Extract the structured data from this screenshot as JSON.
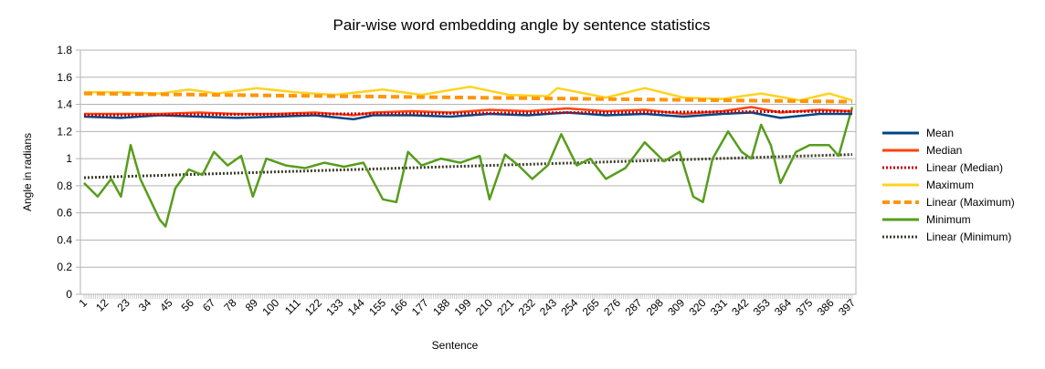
{
  "chart_data": {
    "type": "line",
    "title": "Pair-wise word embedding angle by sentence statistics",
    "xlabel": "Sentence",
    "ylabel": "Angle in radians",
    "ylim": [
      0,
      1.8
    ],
    "yticks": [
      "0",
      "0.2",
      "0.4",
      "0.6",
      "0.8",
      "1",
      "1.2",
      "1.4",
      "1.6",
      "1.8"
    ],
    "x_range": [
      1,
      397
    ],
    "x_tick_labels": [
      "1",
      "12",
      "23",
      "34",
      "45",
      "56",
      "67",
      "78",
      "89",
      "100",
      "111",
      "122",
      "133",
      "144",
      "155",
      "166",
      "177",
      "188",
      "199",
      "210",
      "221",
      "232",
      "243",
      "254",
      "265",
      "276",
      "287",
      "298",
      "309",
      "320",
      "331",
      "342",
      "353",
      "364",
      "375",
      "386",
      "397"
    ],
    "grid": "horizontal",
    "legend_position": "right",
    "series": [
      {
        "name": "Mean",
        "color": "#004586",
        "style": "solid",
        "points": [
          [
            1,
            1.31
          ],
          [
            20,
            1.3
          ],
          [
            40,
            1.32
          ],
          [
            60,
            1.31
          ],
          [
            80,
            1.3
          ],
          [
            100,
            1.31
          ],
          [
            120,
            1.32
          ],
          [
            140,
            1.29
          ],
          [
            150,
            1.32
          ],
          [
            170,
            1.32
          ],
          [
            190,
            1.31
          ],
          [
            210,
            1.33
          ],
          [
            230,
            1.32
          ],
          [
            250,
            1.34
          ],
          [
            270,
            1.32
          ],
          [
            290,
            1.33
          ],
          [
            310,
            1.31
          ],
          [
            330,
            1.33
          ],
          [
            345,
            1.34
          ],
          [
            360,
            1.3
          ],
          [
            380,
            1.33
          ],
          [
            397,
            1.33
          ]
        ]
      },
      {
        "name": "Median",
        "color": "#ff420e",
        "style": "solid",
        "points": [
          [
            1,
            1.33
          ],
          [
            20,
            1.33
          ],
          [
            40,
            1.33
          ],
          [
            60,
            1.34
          ],
          [
            80,
            1.33
          ],
          [
            100,
            1.33
          ],
          [
            120,
            1.34
          ],
          [
            140,
            1.32
          ],
          [
            150,
            1.34
          ],
          [
            170,
            1.35
          ],
          [
            190,
            1.34
          ],
          [
            210,
            1.36
          ],
          [
            230,
            1.35
          ],
          [
            250,
            1.37
          ],
          [
            270,
            1.35
          ],
          [
            290,
            1.36
          ],
          [
            310,
            1.33
          ],
          [
            330,
            1.35
          ],
          [
            345,
            1.38
          ],
          [
            360,
            1.34
          ],
          [
            380,
            1.36
          ],
          [
            397,
            1.35
          ]
        ]
      },
      {
        "name": "Linear (Median)",
        "color": "#c5000b",
        "style": "dotted",
        "points": [
          [
            1,
            1.32
          ],
          [
            397,
            1.35
          ]
        ]
      },
      {
        "name": "Maximum",
        "color": "#ffd320",
        "style": "solid",
        "points": [
          [
            1,
            1.49
          ],
          [
            20,
            1.49
          ],
          [
            40,
            1.48
          ],
          [
            55,
            1.51
          ],
          [
            70,
            1.48
          ],
          [
            90,
            1.52
          ],
          [
            110,
            1.49
          ],
          [
            130,
            1.47
          ],
          [
            155,
            1.51
          ],
          [
            175,
            1.47
          ],
          [
            200,
            1.53
          ],
          [
            220,
            1.47
          ],
          [
            240,
            1.46
          ],
          [
            245,
            1.52
          ],
          [
            270,
            1.45
          ],
          [
            290,
            1.52
          ],
          [
            310,
            1.45
          ],
          [
            330,
            1.44
          ],
          [
            350,
            1.48
          ],
          [
            370,
            1.43
          ],
          [
            385,
            1.48
          ],
          [
            397,
            1.43
          ]
        ]
      },
      {
        "name": "Linear (Maximum)",
        "color": "#ff950e",
        "style": "dashed",
        "points": [
          [
            1,
            1.48
          ],
          [
            397,
            1.42
          ]
        ]
      },
      {
        "name": "Minimum",
        "color": "#579d1c",
        "style": "solid",
        "points": [
          [
            1,
            0.82
          ],
          [
            8,
            0.72
          ],
          [
            15,
            0.85
          ],
          [
            20,
            0.72
          ],
          [
            25,
            1.1
          ],
          [
            30,
            0.85
          ],
          [
            35,
            0.7
          ],
          [
            40,
            0.55
          ],
          [
            43,
            0.5
          ],
          [
            48,
            0.78
          ],
          [
            55,
            0.92
          ],
          [
            62,
            0.88
          ],
          [
            68,
            1.05
          ],
          [
            75,
            0.95
          ],
          [
            82,
            1.02
          ],
          [
            88,
            0.72
          ],
          [
            95,
            1.0
          ],
          [
            105,
            0.95
          ],
          [
            115,
            0.93
          ],
          [
            125,
            0.97
          ],
          [
            135,
            0.94
          ],
          [
            145,
            0.97
          ],
          [
            155,
            0.7
          ],
          [
            162,
            0.68
          ],
          [
            168,
            1.05
          ],
          [
            175,
            0.95
          ],
          [
            185,
            1.0
          ],
          [
            195,
            0.97
          ],
          [
            205,
            1.02
          ],
          [
            210,
            0.7
          ],
          [
            218,
            1.03
          ],
          [
            225,
            0.95
          ],
          [
            232,
            0.85
          ],
          [
            240,
            0.95
          ],
          [
            247,
            1.18
          ],
          [
            255,
            0.95
          ],
          [
            262,
            1.0
          ],
          [
            270,
            0.85
          ],
          [
            280,
            0.93
          ],
          [
            290,
            1.12
          ],
          [
            300,
            0.98
          ],
          [
            308,
            1.05
          ],
          [
            315,
            0.72
          ],
          [
            320,
            0.68
          ],
          [
            325,
            1.0
          ],
          [
            333,
            1.2
          ],
          [
            340,
            1.05
          ],
          [
            345,
            1.0
          ],
          [
            350,
            1.25
          ],
          [
            355,
            1.1
          ],
          [
            360,
            0.82
          ],
          [
            368,
            1.05
          ],
          [
            375,
            1.1
          ],
          [
            385,
            1.1
          ],
          [
            390,
            1.02
          ],
          [
            397,
            1.38
          ]
        ]
      },
      {
        "name": "Linear (Minimum)",
        "color": "#3c3c2a",
        "style": "dotted",
        "points": [
          [
            1,
            0.86
          ],
          [
            397,
            1.03
          ]
        ]
      }
    ]
  }
}
